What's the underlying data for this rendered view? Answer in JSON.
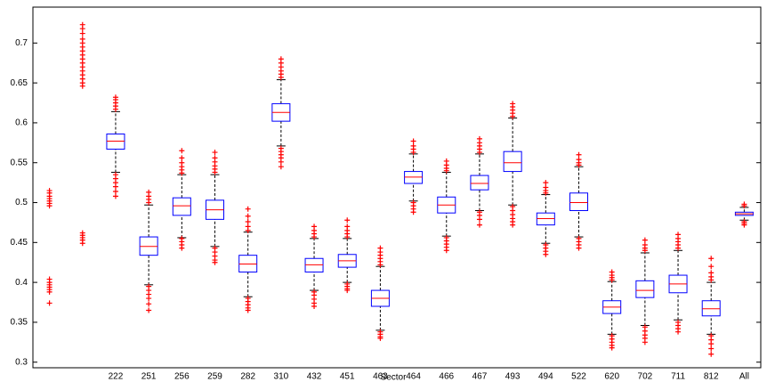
{
  "chart_data": {
    "type": "box",
    "xlabel": "Sector",
    "categories": [
      null,
      null,
      "222",
      "251",
      "256",
      "259",
      "282",
      "310",
      "432",
      "451",
      "463",
      "464",
      "466",
      "467",
      "493",
      "494",
      "522",
      "620",
      "702",
      "711",
      "812",
      "All"
    ],
    "ylim": [
      0.293,
      0.745
    ],
    "yticks": [
      0.3,
      0.35,
      0.4,
      0.45,
      0.5,
      0.55,
      0.6,
      0.65,
      0.7
    ],
    "box_color": "#0000ff",
    "median_color": "#ff0000",
    "outlier_color": "#ff0000",
    "whisker_color": "#000000",
    "boxes": [
      {
        "whislo": null,
        "q1": null,
        "med": null,
        "q3": null,
        "whishi": null,
        "outliers": [
          0.515,
          0.512,
          0.508,
          0.505,
          0.502,
          0.499,
          0.496,
          0.404,
          0.4,
          0.397,
          0.394,
          0.391,
          0.388,
          0.374
        ]
      },
      {
        "whislo": null,
        "q1": null,
        "med": null,
        "q3": null,
        "whishi": null,
        "outliers": [
          0.723,
          0.718,
          0.712,
          0.705,
          0.7,
          0.695,
          0.69,
          0.685,
          0.68,
          0.675,
          0.67,
          0.665,
          0.66,
          0.655,
          0.65,
          0.646,
          0.462,
          0.459,
          0.456,
          0.453,
          0.449
        ]
      },
      {
        "whislo": 0.538,
        "q1": 0.567,
        "med": 0.577,
        "q3": 0.586,
        "whishi": 0.614,
        "outliers": [
          0.617,
          0.621,
          0.625,
          0.629,
          0.632,
          0.535,
          0.53,
          0.525,
          0.52,
          0.514,
          0.508
        ]
      },
      {
        "whislo": 0.397,
        "q1": 0.434,
        "med": 0.445,
        "q3": 0.457,
        "whishi": 0.497,
        "outliers": [
          0.5,
          0.504,
          0.508,
          0.513,
          0.395,
          0.39,
          0.385,
          0.38,
          0.373,
          0.365
        ]
      },
      {
        "whislo": 0.456,
        "q1": 0.484,
        "med": 0.496,
        "q3": 0.506,
        "whishi": 0.535,
        "outliers": [
          0.537,
          0.541,
          0.545,
          0.55,
          0.556,
          0.565,
          0.455,
          0.451,
          0.447,
          0.443
        ]
      },
      {
        "whislo": 0.445,
        "q1": 0.479,
        "med": 0.491,
        "q3": 0.503,
        "whishi": 0.535,
        "outliers": [
          0.538,
          0.542,
          0.546,
          0.551,
          0.556,
          0.563,
          0.443,
          0.438,
          0.433,
          0.428,
          0.425
        ]
      },
      {
        "whislo": 0.382,
        "q1": 0.413,
        "med": 0.423,
        "q3": 0.434,
        "whishi": 0.463,
        "outliers": [
          0.465,
          0.47,
          0.476,
          0.483,
          0.492,
          0.38,
          0.376,
          0.372,
          0.368,
          0.365
        ]
      },
      {
        "whislo": 0.571,
        "q1": 0.602,
        "med": 0.613,
        "q3": 0.624,
        "whishi": 0.654,
        "outliers": [
          0.657,
          0.661,
          0.665,
          0.67,
          0.675,
          0.68,
          0.568,
          0.564,
          0.56,
          0.556,
          0.551,
          0.545
        ]
      },
      {
        "whislo": 0.39,
        "q1": 0.413,
        "med": 0.422,
        "q3": 0.43,
        "whishi": 0.455,
        "outliers": [
          0.457,
          0.461,
          0.465,
          0.47,
          0.388,
          0.384,
          0.379,
          0.374,
          0.37
        ]
      },
      {
        "whislo": 0.4,
        "q1": 0.419,
        "med": 0.427,
        "q3": 0.435,
        "whishi": 0.455,
        "outliers": [
          0.457,
          0.461,
          0.465,
          0.47,
          0.478,
          0.398,
          0.395,
          0.392,
          0.39
        ]
      },
      {
        "whislo": 0.34,
        "q1": 0.37,
        "med": 0.38,
        "q3": 0.39,
        "whishi": 0.42,
        "outliers": [
          0.422,
          0.426,
          0.43,
          0.434,
          0.438,
          0.443,
          0.338,
          0.335,
          0.332,
          0.33
        ]
      },
      {
        "whislo": 0.502,
        "q1": 0.524,
        "med": 0.532,
        "q3": 0.539,
        "whishi": 0.561,
        "outliers": [
          0.563,
          0.567,
          0.571,
          0.577,
          0.5,
          0.496,
          0.492,
          0.488
        ]
      },
      {
        "whislo": 0.458,
        "q1": 0.487,
        "med": 0.497,
        "q3": 0.507,
        "whishi": 0.538,
        "outliers": [
          0.54,
          0.543,
          0.547,
          0.552,
          0.456,
          0.452,
          0.448,
          0.444,
          0.44
        ]
      },
      {
        "whislo": 0.49,
        "q1": 0.516,
        "med": 0.524,
        "q3": 0.534,
        "whishi": 0.561,
        "outliers": [
          0.563,
          0.567,
          0.571,
          0.575,
          0.58,
          0.488,
          0.484,
          0.479,
          0.472
        ]
      },
      {
        "whislo": 0.497,
        "q1": 0.539,
        "med": 0.55,
        "q3": 0.564,
        "whishi": 0.606,
        "outliers": [
          0.608,
          0.612,
          0.616,
          0.62,
          0.624,
          0.495,
          0.49,
          0.485,
          0.48,
          0.476,
          0.472
        ]
      },
      {
        "whislo": 0.449,
        "q1": 0.472,
        "med": 0.48,
        "q3": 0.487,
        "whishi": 0.51,
        "outliers": [
          0.512,
          0.515,
          0.519,
          0.525,
          0.447,
          0.443,
          0.439,
          0.435
        ]
      },
      {
        "whislo": 0.457,
        "q1": 0.49,
        "med": 0.5,
        "q3": 0.512,
        "whishi": 0.545,
        "outliers": [
          0.547,
          0.55,
          0.554,
          0.56,
          0.455,
          0.451,
          0.447,
          0.443
        ]
      },
      {
        "whislo": 0.335,
        "q1": 0.361,
        "med": 0.369,
        "q3": 0.377,
        "whishi": 0.401,
        "outliers": [
          0.403,
          0.406,
          0.409,
          0.413,
          0.333,
          0.329,
          0.325,
          0.321,
          0.318
        ]
      },
      {
        "whislo": 0.346,
        "q1": 0.381,
        "med": 0.39,
        "q3": 0.402,
        "whishi": 0.437,
        "outliers": [
          0.44,
          0.443,
          0.447,
          0.453,
          0.344,
          0.339,
          0.334,
          0.33,
          0.325
        ]
      },
      {
        "whislo": 0.353,
        "q1": 0.387,
        "med": 0.398,
        "q3": 0.409,
        "whishi": 0.44,
        "outliers": [
          0.443,
          0.447,
          0.451,
          0.455,
          0.46,
          0.35,
          0.346,
          0.342,
          0.338
        ]
      },
      {
        "whislo": 0.335,
        "q1": 0.358,
        "med": 0.367,
        "q3": 0.377,
        "whishi": 0.4,
        "outliers": [
          0.403,
          0.407,
          0.412,
          0.42,
          0.43,
          0.333,
          0.328,
          0.323,
          0.317,
          0.31
        ]
      },
      {
        "whislo": 0.478,
        "q1": 0.484,
        "med": 0.486,
        "q3": 0.488,
        "whishi": 0.494,
        "outliers": [
          0.496,
          0.498,
          0.476,
          0.474,
          0.472
        ]
      }
    ]
  }
}
